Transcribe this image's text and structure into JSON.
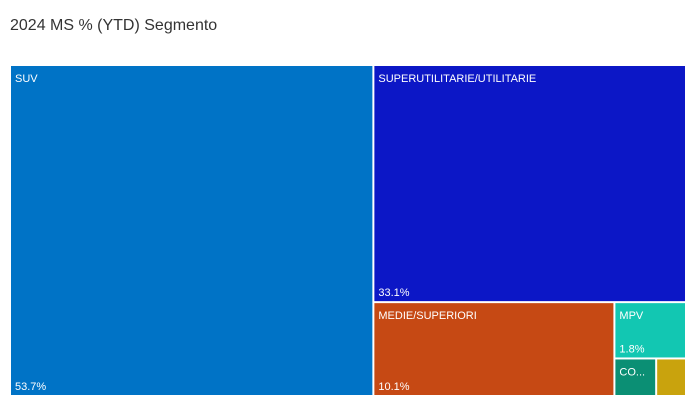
{
  "chart_data": {
    "type": "treemap",
    "title": "2024 MS % (YTD) Segmento",
    "categories": [
      "SUV",
      "SUPERUTILITARIE/UTILITARIE",
      "MEDIE/SUPERIORI",
      "MPV",
      "CO...",
      null
    ],
    "values": [
      53.7,
      33.1,
      10.1,
      1.8,
      0.7,
      0.5
    ],
    "value_labels": [
      "53.7%",
      "33.1%",
      "10.1%",
      "1.8%",
      null,
      null
    ],
    "colors": [
      "#0073c6",
      "#0c17c6",
      "#c64914",
      "#12c7b2",
      "#0b8f74",
      "#c9a30d"
    ]
  }
}
